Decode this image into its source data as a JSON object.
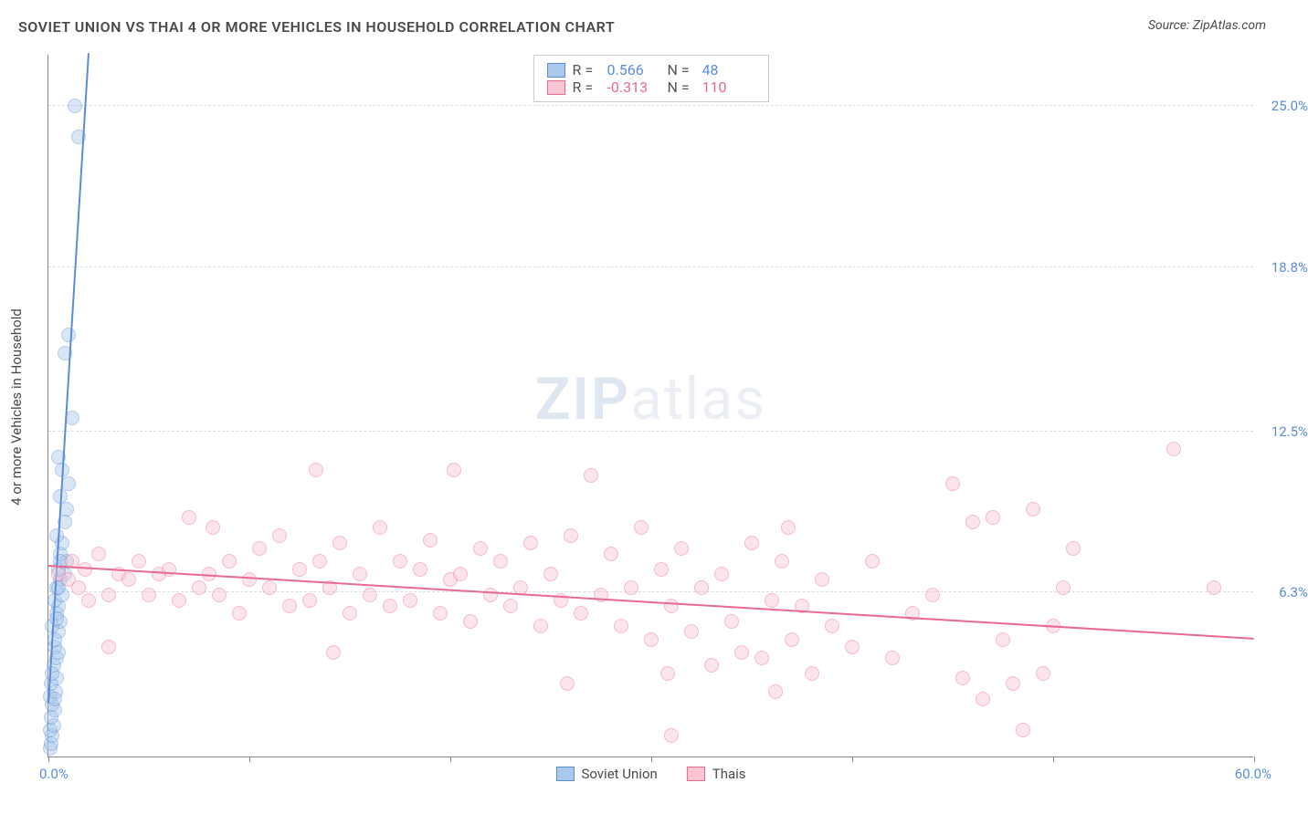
{
  "title": "SOVIET UNION VS THAI 4 OR MORE VEHICLES IN HOUSEHOLD CORRELATION CHART",
  "source": "Source: ZipAtlas.com",
  "watermark_prefix": "ZIP",
  "watermark_suffix": "atlas",
  "yaxis_label": "4 or more Vehicles in Household",
  "chart": {
    "type": "scatter",
    "xlim": [
      0,
      60
    ],
    "ylim": [
      0,
      27
    ],
    "x_ticks_pct": [
      0,
      10,
      20,
      30,
      40,
      50,
      60
    ],
    "y_gridlines": [
      {
        "v": 6.3,
        "label": "6.3%"
      },
      {
        "v": 12.5,
        "label": "12.5%"
      },
      {
        "v": 18.8,
        "label": "18.8%"
      },
      {
        "v": 25.0,
        "label": "25.0%"
      }
    ],
    "x_min_label": "0.0%",
    "x_max_label": "60.0%",
    "background_color": "#ffffff",
    "grid_color": "#dddddd",
    "point_radius": 8,
    "point_opacity": 0.45
  },
  "series": [
    {
      "key": "soviet",
      "label": "Soviet Union",
      "color_fill": "#a9c8ec",
      "color_stroke": "#5b8dd6",
      "r_value": "0.566",
      "n_value": "48",
      "trend": {
        "x1": 0,
        "y1": 2.0,
        "x2": 2.0,
        "y2": 27.0,
        "dash_after_y": 20.5
      },
      "points": [
        [
          0.1,
          0.3
        ],
        [
          0.15,
          0.5
        ],
        [
          0.2,
          0.8
        ],
        [
          0.1,
          1.0
        ],
        [
          0.25,
          1.2
        ],
        [
          0.15,
          1.5
        ],
        [
          0.3,
          1.8
        ],
        [
          0.2,
          2.0
        ],
        [
          0.1,
          2.3
        ],
        [
          0.35,
          2.5
        ],
        [
          0.15,
          2.8
        ],
        [
          0.4,
          3.0
        ],
        [
          0.25,
          3.5
        ],
        [
          0.3,
          4.2
        ],
        [
          0.5,
          4.8
        ],
        [
          0.2,
          5.0
        ],
        [
          0.6,
          5.2
        ],
        [
          0.4,
          5.5
        ],
        [
          0.5,
          5.8
        ],
        [
          0.3,
          6.0
        ],
        [
          0.7,
          6.2
        ],
        [
          0.4,
          6.5
        ],
        [
          0.6,
          6.8
        ],
        [
          0.8,
          7.0
        ],
        [
          0.5,
          7.2
        ],
        [
          0.9,
          7.5
        ],
        [
          0.6,
          7.8
        ],
        [
          0.7,
          8.2
        ],
        [
          0.4,
          8.5
        ],
        [
          0.8,
          9.0
        ],
        [
          0.9,
          9.5
        ],
        [
          0.6,
          10.0
        ],
        [
          1.0,
          10.5
        ],
        [
          0.7,
          11.0
        ],
        [
          0.5,
          11.5
        ],
        [
          1.2,
          13.0
        ],
        [
          0.8,
          15.5
        ],
        [
          1.0,
          16.2
        ],
        [
          1.5,
          23.8
        ],
        [
          1.3,
          25.0
        ],
        [
          0.3,
          4.5
        ],
        [
          0.4,
          5.3
        ],
        [
          0.5,
          6.5
        ],
        [
          0.2,
          3.2
        ],
        [
          0.6,
          7.5
        ],
        [
          0.3,
          2.2
        ],
        [
          0.4,
          3.8
        ],
        [
          0.5,
          4.0
        ]
      ]
    },
    {
      "key": "thai",
      "label": "Thais",
      "color_fill": "#f8c5d3",
      "color_stroke": "#e86a92",
      "r_value": "-0.313",
      "n_value": "110",
      "trend": {
        "x1": 0,
        "y1": 7.3,
        "x2": 60,
        "y2": 4.5,
        "dash_after_y": null
      },
      "points": [
        [
          0.5,
          7.0
        ],
        [
          1.0,
          6.8
        ],
        [
          1.2,
          7.5
        ],
        [
          1.5,
          6.5
        ],
        [
          1.8,
          7.2
        ],
        [
          2.0,
          6.0
        ],
        [
          2.5,
          7.8
        ],
        [
          3.0,
          6.2
        ],
        [
          3.0,
          4.2
        ],
        [
          3.5,
          7.0
        ],
        [
          4.0,
          6.8
        ],
        [
          4.5,
          7.5
        ],
        [
          5.0,
          6.2
        ],
        [
          5.5,
          7.0
        ],
        [
          6.0,
          7.2
        ],
        [
          6.5,
          6.0
        ],
        [
          7.0,
          9.2
        ],
        [
          7.5,
          6.5
        ],
        [
          8.0,
          7.0
        ],
        [
          8.2,
          8.8
        ],
        [
          8.5,
          6.2
        ],
        [
          9.0,
          7.5
        ],
        [
          9.5,
          5.5
        ],
        [
          10.0,
          6.8
        ],
        [
          10.5,
          8.0
        ],
        [
          11.0,
          6.5
        ],
        [
          11.5,
          8.5
        ],
        [
          12.0,
          5.8
        ],
        [
          12.5,
          7.2
        ],
        [
          13.0,
          6.0
        ],
        [
          13.3,
          11.0
        ],
        [
          13.5,
          7.5
        ],
        [
          14.0,
          6.5
        ],
        [
          14.2,
          4.0
        ],
        [
          14.5,
          8.2
        ],
        [
          15.0,
          5.5
        ],
        [
          15.5,
          7.0
        ],
        [
          16.0,
          6.2
        ],
        [
          16.5,
          8.8
        ],
        [
          17.0,
          5.8
        ],
        [
          17.5,
          7.5
        ],
        [
          18.0,
          6.0
        ],
        [
          18.5,
          7.2
        ],
        [
          19.0,
          8.3
        ],
        [
          19.5,
          5.5
        ],
        [
          20.0,
          6.8
        ],
        [
          20.2,
          11.0
        ],
        [
          20.5,
          7.0
        ],
        [
          21.0,
          5.2
        ],
        [
          21.5,
          8.0
        ],
        [
          22.0,
          6.2
        ],
        [
          22.5,
          7.5
        ],
        [
          23.0,
          5.8
        ],
        [
          23.5,
          6.5
        ],
        [
          24.0,
          8.2
        ],
        [
          24.5,
          5.0
        ],
        [
          25.0,
          7.0
        ],
        [
          25.5,
          6.0
        ],
        [
          25.8,
          2.8
        ],
        [
          26.0,
          8.5
        ],
        [
          26.5,
          5.5
        ],
        [
          27.0,
          10.8
        ],
        [
          27.5,
          6.2
        ],
        [
          28.0,
          7.8
        ],
        [
          28.5,
          5.0
        ],
        [
          29.0,
          6.5
        ],
        [
          29.5,
          8.8
        ],
        [
          30.0,
          4.5
        ],
        [
          30.5,
          7.2
        ],
        [
          30.8,
          3.2
        ],
        [
          31.0,
          5.8
        ],
        [
          31.5,
          8.0
        ],
        [
          32.0,
          4.8
        ],
        [
          32.5,
          6.5
        ],
        [
          33.0,
          3.5
        ],
        [
          33.5,
          7.0
        ],
        [
          34.0,
          5.2
        ],
        [
          34.5,
          4.0
        ],
        [
          35.0,
          8.2
        ],
        [
          35.5,
          3.8
        ],
        [
          36.0,
          6.0
        ],
        [
          36.2,
          2.5
        ],
        [
          36.5,
          7.5
        ],
        [
          36.8,
          8.8
        ],
        [
          37.0,
          4.5
        ],
        [
          37.5,
          5.8
        ],
        [
          38.0,
          3.2
        ],
        [
          38.5,
          6.8
        ],
        [
          39.0,
          5.0
        ],
        [
          40.0,
          4.2
        ],
        [
          41.0,
          7.5
        ],
        [
          42.0,
          3.8
        ],
        [
          43.0,
          5.5
        ],
        [
          44.0,
          6.2
        ],
        [
          45.0,
          10.5
        ],
        [
          45.5,
          3.0
        ],
        [
          46.0,
          9.0
        ],
        [
          46.5,
          2.2
        ],
        [
          47.0,
          9.2
        ],
        [
          47.5,
          4.5
        ],
        [
          48.0,
          2.8
        ],
        [
          48.5,
          1.0
        ],
        [
          49.0,
          9.5
        ],
        [
          49.5,
          3.2
        ],
        [
          50.0,
          5.0
        ],
        [
          50.5,
          6.5
        ],
        [
          51.0,
          8.0
        ],
        [
          56.0,
          11.8
        ],
        [
          58.0,
          6.5
        ],
        [
          31.0,
          0.8
        ]
      ]
    }
  ],
  "rn_legend": {
    "r_label": "R =",
    "n_label": "N ="
  },
  "bottom_legend_series": [
    "soviet",
    "thai"
  ]
}
